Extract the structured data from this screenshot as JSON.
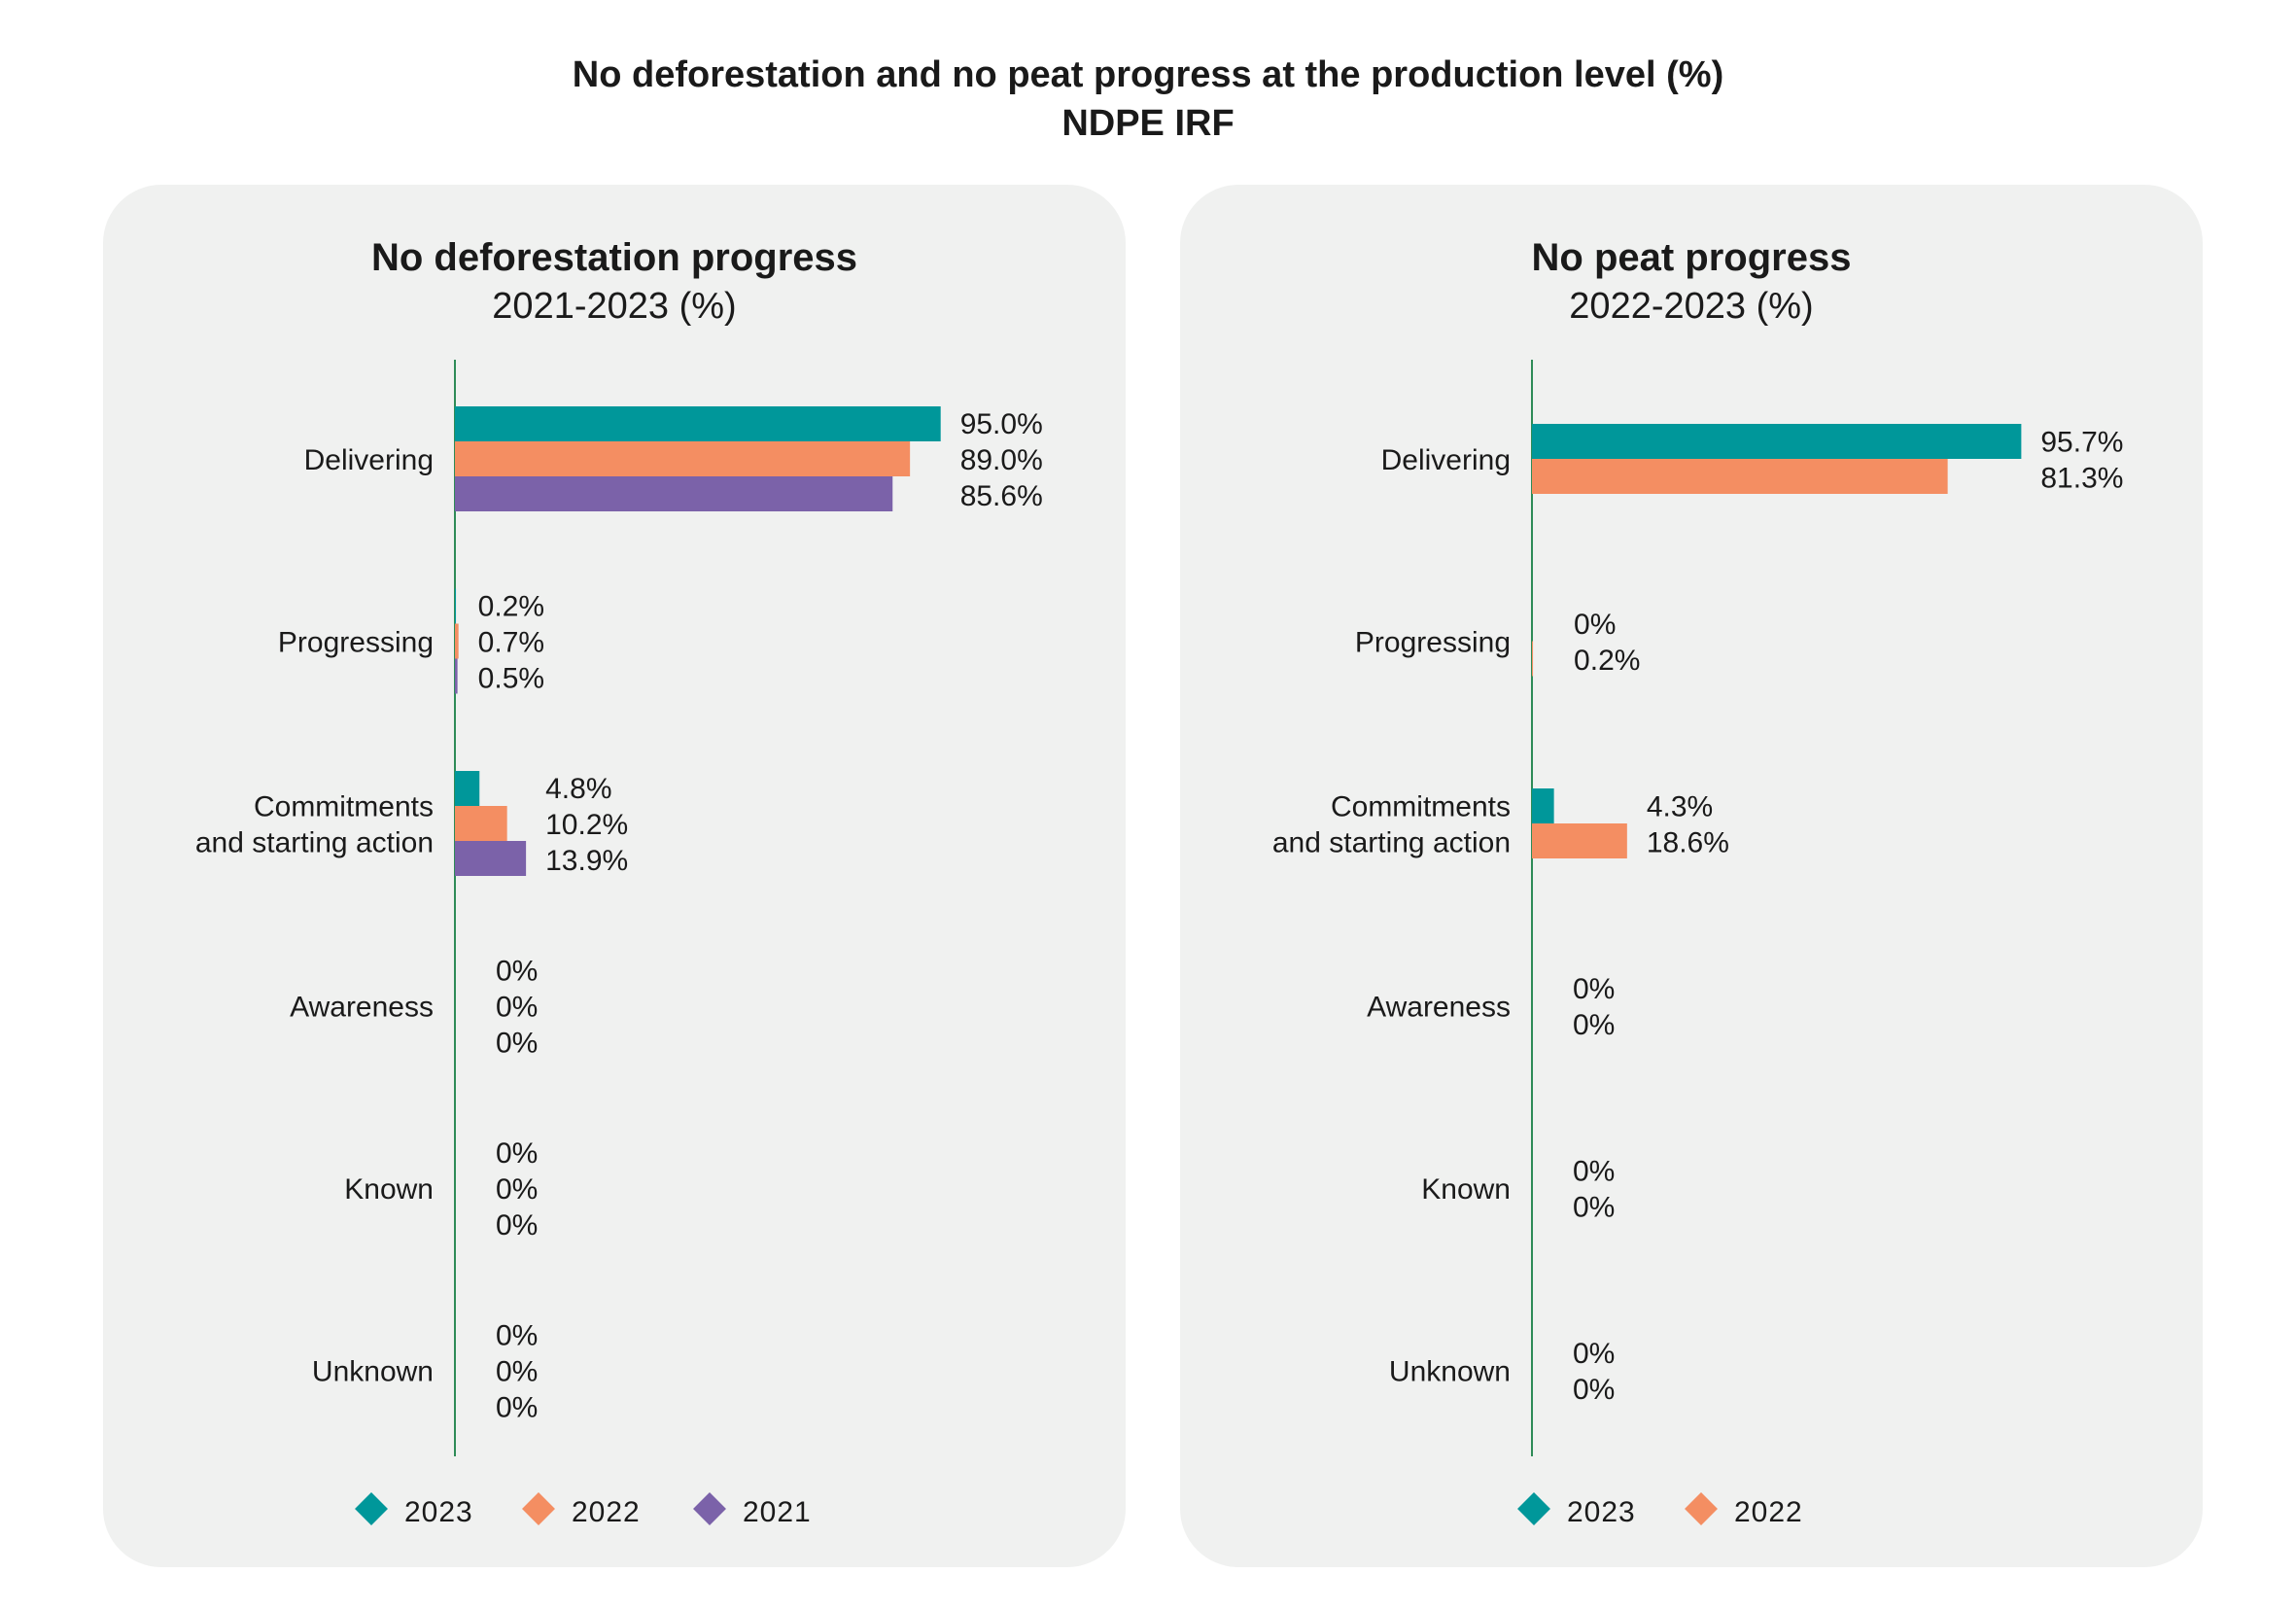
{
  "page": {
    "title_line1": "No deforestation and no peat progress at the production level (%)",
    "title_line2": "NDPE IRF"
  },
  "colors": {
    "2023": "#00979a",
    "2022": "#f48e62",
    "2021": "#7b62a9",
    "axis": "#2e8b57",
    "panel_bg": "#f0f1f0"
  },
  "chart_data": [
    {
      "type": "bar",
      "orientation": "horizontal",
      "title": "No deforestation progress",
      "subtitle": "2021-2023 (%)",
      "categories": [
        "Delivering",
        "Progressing",
        "Commitments\nand starting action",
        "Awareness",
        "Known",
        "Unknown"
      ],
      "series": [
        {
          "name": "2023",
          "values": [
            95.0,
            0.2,
            4.8,
            0,
            0,
            0
          ],
          "labels": [
            "95.0%",
            "0.2%",
            "4.8%",
            "0%",
            "0%",
            "0%"
          ]
        },
        {
          "name": "2022",
          "values": [
            89.0,
            0.7,
            10.2,
            0,
            0,
            0
          ],
          "labels": [
            "89.0%",
            "0.7%",
            "10.2%",
            "0%",
            "0%",
            "0%"
          ]
        },
        {
          "name": "2021",
          "values": [
            85.6,
            0.5,
            13.9,
            0,
            0,
            0
          ],
          "labels": [
            "85.6%",
            "0.5%",
            "13.9%",
            "0%",
            "0%",
            "0%"
          ]
        }
      ],
      "xlim": [
        0,
        100
      ],
      "legend": [
        "2023",
        "2022",
        "2021"
      ],
      "legend_position": "bottom"
    },
    {
      "type": "bar",
      "orientation": "horizontal",
      "title": "No peat progress",
      "subtitle": "2022-2023 (%)",
      "categories": [
        "Delivering",
        "Progressing",
        "Commitments\nand starting action",
        "Awareness",
        "Known",
        "Unknown"
      ],
      "series": [
        {
          "name": "2023",
          "values": [
            95.7,
            0,
            4.3,
            0,
            0,
            0
          ],
          "labels": [
            "95.7%",
            "0%",
            "4.3%",
            "0%",
            "0%",
            "0%"
          ]
        },
        {
          "name": "2022",
          "values": [
            81.3,
            0.2,
            18.6,
            0,
            0,
            0
          ],
          "labels": [
            "81.3%",
            "0.2%",
            "18.6%",
            "0%",
            "0%",
            "0%"
          ]
        }
      ],
      "xlim": [
        0,
        100
      ],
      "legend": [
        "2023",
        "2022"
      ],
      "legend_position": "bottom"
    }
  ]
}
